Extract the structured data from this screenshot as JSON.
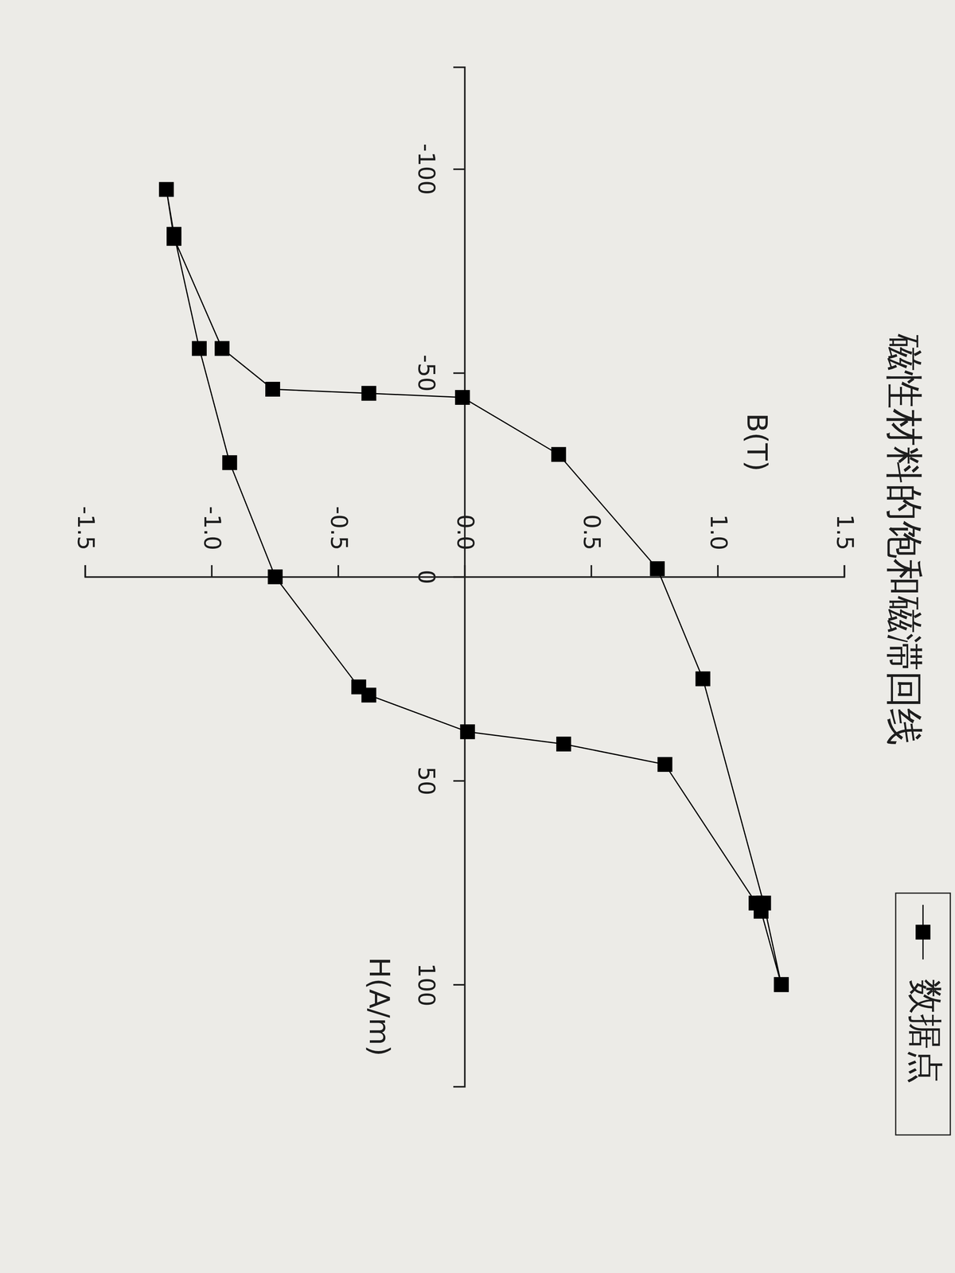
{
  "chart_data": {
    "type": "line",
    "title": "磁性材料的饱和磁滞回线",
    "x_label": "H(A/m)",
    "y_label": "B(T)",
    "x": [
      100,
      80,
      25,
      -2,
      -30,
      -44,
      -45,
      -46,
      -56,
      -83,
      -95,
      -84,
      -56,
      -28,
      0,
      27,
      29,
      38,
      41,
      46,
      80,
      82,
      100
    ],
    "series": [
      {
        "name": "数据点",
        "color": "#000000",
        "marker": "square",
        "line_style": "solid",
        "values": [
          1.25,
          1.18,
          0.94,
          0.76,
          0.37,
          -0.01,
          -0.38,
          -0.76,
          -0.96,
          -1.15,
          -1.18,
          -1.15,
          -1.05,
          -0.93,
          -0.75,
          -0.42,
          -0.38,
          0.01,
          0.39,
          0.79,
          1.15,
          1.17,
          1.25
        ]
      }
    ],
    "xlim": [
      -125,
      125
    ],
    "ylim": [
      -1.5,
      1.5
    ],
    "xticks": [
      -100,
      -50,
      0,
      50,
      100
    ],
    "yticks": [
      {
        "value": -1.5,
        "label": "-1.5"
      },
      {
        "value": -1.0,
        "label": "-1.0"
      },
      {
        "value": -0.5,
        "label": "-0.5"
      },
      {
        "value": 0,
        "label": "0.0"
      },
      {
        "value": 0.5,
        "label": "0.5"
      },
      {
        "value": 1.0,
        "label": "1.0"
      },
      {
        "value": 1.5,
        "label": "1.5"
      }
    ],
    "grid": false,
    "legend": "upper right"
  }
}
